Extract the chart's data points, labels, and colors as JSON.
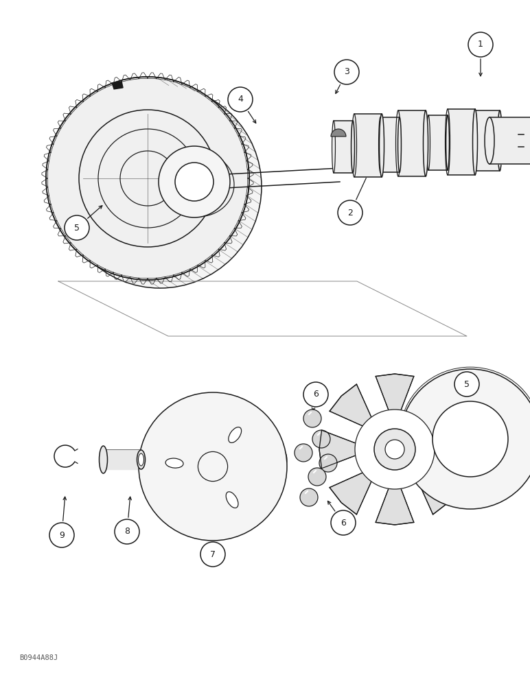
{
  "bg_color": "#ffffff",
  "line_color": "#1a1a1a",
  "fig_width": 7.72,
  "fig_height": 10.0,
  "watermark": "B0944A88J",
  "lw": 1.1
}
